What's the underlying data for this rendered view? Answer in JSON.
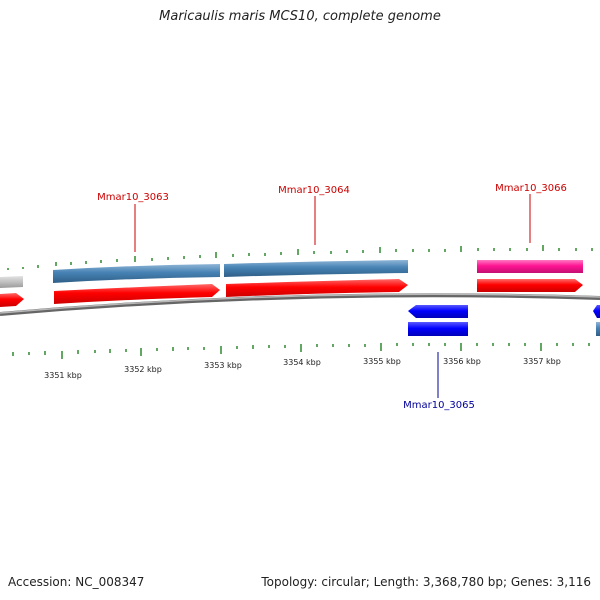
{
  "title": "Maricaulis maris MCS10, complete genome",
  "accession": "Accession: NC_008347",
  "summary": "Topology: circular; Length: 3,368,780 bp; Genes: 3,116",
  "colors": {
    "forward_cds": "#ff0000",
    "gene_track": "#4682b4",
    "reverse_cds": "#0000ff",
    "rna_or_special": "#ff1493",
    "partial_gene": "#c0c0c0",
    "gc_ticks": "#2e8b2e",
    "backbone": "#888888",
    "forward_label": "#cc0000",
    "reverse_label": "#000099"
  },
  "scale_labels": [
    "3351 kbp",
    "3352 kbp",
    "3353 kbp",
    "3354 kbp",
    "3355 kbp",
    "3356 kbp",
    "3357 kbp"
  ],
  "gene_labels": [
    {
      "name": "Mmar10_3063",
      "strand": "forward"
    },
    {
      "name": "Mmar10_3064",
      "strand": "forward"
    },
    {
      "name": "Mmar10_3065",
      "strand": "reverse"
    },
    {
      "name": "Mmar10_3066",
      "strand": "forward"
    }
  ]
}
